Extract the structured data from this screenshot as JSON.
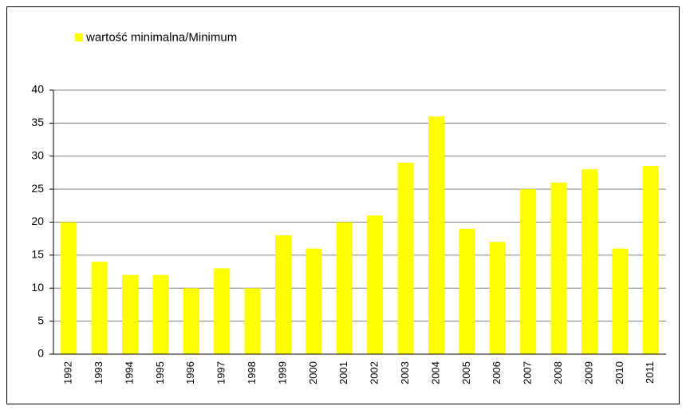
{
  "chart_data": {
    "type": "bar",
    "legend": "wartość minimalna/Minimum",
    "categories": [
      "1992",
      "1993",
      "1994",
      "1995",
      "1996",
      "1997",
      "1998",
      "1999",
      "2000",
      "2001",
      "2002",
      "2003",
      "2004",
      "2005",
      "2006",
      "2007",
      "2008",
      "2009",
      "2010",
      "2011"
    ],
    "values": [
      20,
      14,
      12,
      12,
      10,
      13,
      10,
      18,
      16,
      20,
      21,
      29,
      36,
      19,
      17,
      25,
      26,
      28,
      16,
      28.5
    ],
    "color": "#ffff00",
    "ylim": [
      0,
      40
    ],
    "yticks": [
      0,
      5,
      10,
      15,
      20,
      25,
      30,
      35,
      40
    ],
    "grid": true
  }
}
